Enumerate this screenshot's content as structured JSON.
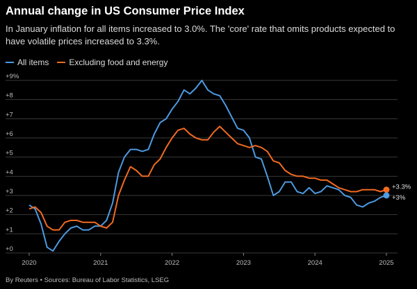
{
  "header": {
    "title": "Annual change in US Consumer Price Index",
    "subtitle": "In January inflation for all items increased to 3.0%. The 'core' rate that omits products expected to have volatile prices increased to 3.3%."
  },
  "footer": {
    "credit": "By Reuters • Sources: Bureau of Labor Statistics, LSEG"
  },
  "colors": {
    "all_items": "#4d9be3",
    "core": "#f26b21",
    "grid": "#3a3a3a",
    "background": "#000000"
  },
  "chart_data": {
    "type": "line",
    "title": "Annual change in US Consumer Price Index",
    "xlabel": "",
    "ylabel": "",
    "ylim": [
      0,
      9
    ],
    "xlim": [
      2020,
      2025
    ],
    "grid": true,
    "legend_position": "top-left",
    "y_ticks": [
      "+0",
      "+1",
      "+2",
      "+3",
      "+4",
      "+5",
      "+6",
      "+7",
      "+8",
      "+9%"
    ],
    "x_ticks": [
      "2020",
      "2021",
      "2022",
      "2023",
      "2024",
      "2025"
    ],
    "series": [
      {
        "name": "All items",
        "end_label": "+3%",
        "values": [
          [
            2020.0,
            2.5
          ],
          [
            2020.083,
            2.3
          ],
          [
            2020.167,
            1.5
          ],
          [
            2020.25,
            0.3
          ],
          [
            2020.333,
            0.1
          ],
          [
            2020.417,
            0.6
          ],
          [
            2020.5,
            1.0
          ],
          [
            2020.583,
            1.3
          ],
          [
            2020.667,
            1.4
          ],
          [
            2020.75,
            1.2
          ],
          [
            2020.833,
            1.2
          ],
          [
            2020.917,
            1.4
          ],
          [
            2021.0,
            1.4
          ],
          [
            2021.083,
            1.7
          ],
          [
            2021.167,
            2.6
          ],
          [
            2021.25,
            4.2
          ],
          [
            2021.333,
            5.0
          ],
          [
            2021.417,
            5.4
          ],
          [
            2021.5,
            5.4
          ],
          [
            2021.583,
            5.3
          ],
          [
            2021.667,
            5.4
          ],
          [
            2021.75,
            6.2
          ],
          [
            2021.833,
            6.8
          ],
          [
            2021.917,
            7.0
          ],
          [
            2022.0,
            7.5
          ],
          [
            2022.083,
            7.9
          ],
          [
            2022.167,
            8.5
          ],
          [
            2022.25,
            8.3
          ],
          [
            2022.333,
            8.6
          ],
          [
            2022.417,
            9.0
          ],
          [
            2022.5,
            8.5
          ],
          [
            2022.583,
            8.3
          ],
          [
            2022.667,
            8.2
          ],
          [
            2022.75,
            7.7
          ],
          [
            2022.833,
            7.1
          ],
          [
            2022.917,
            6.5
          ],
          [
            2023.0,
            6.4
          ],
          [
            2023.083,
            6.0
          ],
          [
            2023.167,
            5.0
          ],
          [
            2023.25,
            4.9
          ],
          [
            2023.333,
            4.0
          ],
          [
            2023.417,
            3.0
          ],
          [
            2023.5,
            3.2
          ],
          [
            2023.583,
            3.7
          ],
          [
            2023.667,
            3.7
          ],
          [
            2023.75,
            3.2
          ],
          [
            2023.833,
            3.1
          ],
          [
            2023.917,
            3.4
          ],
          [
            2024.0,
            3.1
          ],
          [
            2024.083,
            3.2
          ],
          [
            2024.167,
            3.5
          ],
          [
            2024.25,
            3.4
          ],
          [
            2024.333,
            3.3
          ],
          [
            2024.417,
            3.0
          ],
          [
            2024.5,
            2.9
          ],
          [
            2024.583,
            2.5
          ],
          [
            2024.667,
            2.4
          ],
          [
            2024.75,
            2.6
          ],
          [
            2024.833,
            2.7
          ],
          [
            2024.917,
            2.9
          ],
          [
            2025.0,
            3.0
          ]
        ]
      },
      {
        "name": "Excluding food and energy",
        "end_label": "+3.3%",
        "values": [
          [
            2020.0,
            2.3
          ],
          [
            2020.083,
            2.4
          ],
          [
            2020.167,
            2.1
          ],
          [
            2020.25,
            1.4
          ],
          [
            2020.333,
            1.2
          ],
          [
            2020.417,
            1.2
          ],
          [
            2020.5,
            1.6
          ],
          [
            2020.583,
            1.7
          ],
          [
            2020.667,
            1.7
          ],
          [
            2020.75,
            1.6
          ],
          [
            2020.833,
            1.6
          ],
          [
            2020.917,
            1.6
          ],
          [
            2021.0,
            1.4
          ],
          [
            2021.083,
            1.3
          ],
          [
            2021.167,
            1.6
          ],
          [
            2021.25,
            3.0
          ],
          [
            2021.333,
            3.8
          ],
          [
            2021.417,
            4.5
          ],
          [
            2021.5,
            4.3
          ],
          [
            2021.583,
            4.0
          ],
          [
            2021.667,
            4.0
          ],
          [
            2021.75,
            4.6
          ],
          [
            2021.833,
            4.9
          ],
          [
            2021.917,
            5.5
          ],
          [
            2022.0,
            6.0
          ],
          [
            2022.083,
            6.4
          ],
          [
            2022.167,
            6.5
          ],
          [
            2022.25,
            6.2
          ],
          [
            2022.333,
            6.0
          ],
          [
            2022.417,
            5.9
          ],
          [
            2022.5,
            5.9
          ],
          [
            2022.583,
            6.3
          ],
          [
            2022.667,
            6.6
          ],
          [
            2022.75,
            6.3
          ],
          [
            2022.833,
            6.0
          ],
          [
            2022.917,
            5.7
          ],
          [
            2023.0,
            5.6
          ],
          [
            2023.083,
            5.5
          ],
          [
            2023.167,
            5.6
          ],
          [
            2023.25,
            5.5
          ],
          [
            2023.333,
            5.3
          ],
          [
            2023.417,
            4.8
          ],
          [
            2023.5,
            4.7
          ],
          [
            2023.583,
            4.3
          ],
          [
            2023.667,
            4.1
          ],
          [
            2023.75,
            4.0
          ],
          [
            2023.833,
            4.0
          ],
          [
            2023.917,
            3.9
          ],
          [
            2024.0,
            3.9
          ],
          [
            2024.083,
            3.8
          ],
          [
            2024.167,
            3.8
          ],
          [
            2024.25,
            3.6
          ],
          [
            2024.333,
            3.4
          ],
          [
            2024.417,
            3.3
          ],
          [
            2024.5,
            3.2
          ],
          [
            2024.583,
            3.2
          ],
          [
            2024.667,
            3.3
          ],
          [
            2024.75,
            3.3
          ],
          [
            2024.833,
            3.3
          ],
          [
            2024.917,
            3.2
          ],
          [
            2025.0,
            3.3
          ]
        ]
      }
    ]
  }
}
